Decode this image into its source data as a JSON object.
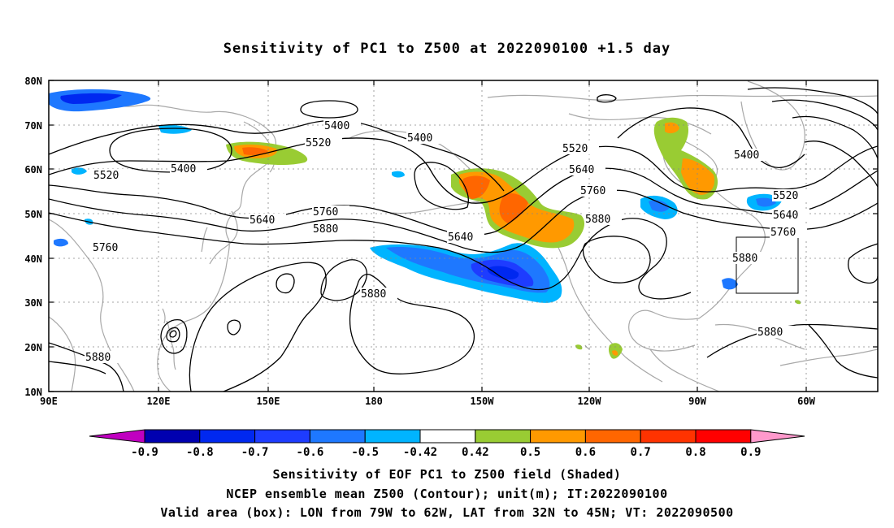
{
  "title": "Sensitivity of PC1 to Z500 at 2022090100 +1.5 day",
  "map": {
    "lat_labels": [
      "80N",
      "70N",
      "60N",
      "50N",
      "40N",
      "30N",
      "20N",
      "10N"
    ],
    "lon_labels": [
      "90E",
      "120E",
      "150E",
      "180",
      "150W",
      "120W",
      "90W",
      "60W"
    ],
    "contour_labels": [
      {
        "text": "5400"
      },
      {
        "text": "5400"
      },
      {
        "text": "5400"
      },
      {
        "text": "5400"
      },
      {
        "text": "5520"
      },
      {
        "text": "5520"
      },
      {
        "text": "5520"
      },
      {
        "text": "5520"
      },
      {
        "text": "5640"
      },
      {
        "text": "5640"
      },
      {
        "text": "5640"
      },
      {
        "text": "5640"
      },
      {
        "text": "5760"
      },
      {
        "text": "5760"
      },
      {
        "text": "5760"
      },
      {
        "text": "5760"
      },
      {
        "text": "5880"
      },
      {
        "text": "5880"
      },
      {
        "text": "5880"
      },
      {
        "text": "5880"
      },
      {
        "text": "5880"
      },
      {
        "text": "5880"
      }
    ]
  },
  "colorbar": {
    "labels": [
      "-0.9",
      "-0.8",
      "-0.7",
      "-0.6",
      "-0.5",
      "-0.42",
      "0.42",
      "0.5",
      "0.6",
      "0.7",
      "0.8",
      "0.9"
    ],
    "colors": [
      "#c000c0",
      "#0000b0",
      "#0028f0",
      "#1e3cff",
      "#1e78ff",
      "#00b4ff",
      "#ffffff",
      "#99cc33",
      "#ff9900",
      "#ff6600",
      "#ff3300",
      "#ff0000",
      "#ff99cc"
    ]
  },
  "captions": {
    "line1": "Sensitivity of EOF PC1 to Z500 field (Shaded)",
    "line2": "NCEP ensemble mean Z500 (Contour); unit(m); IT:2022090100",
    "line3": "Valid area (box): LON from 79W to 62W, LAT from 32N to 45N; VT: 2022090500"
  }
}
